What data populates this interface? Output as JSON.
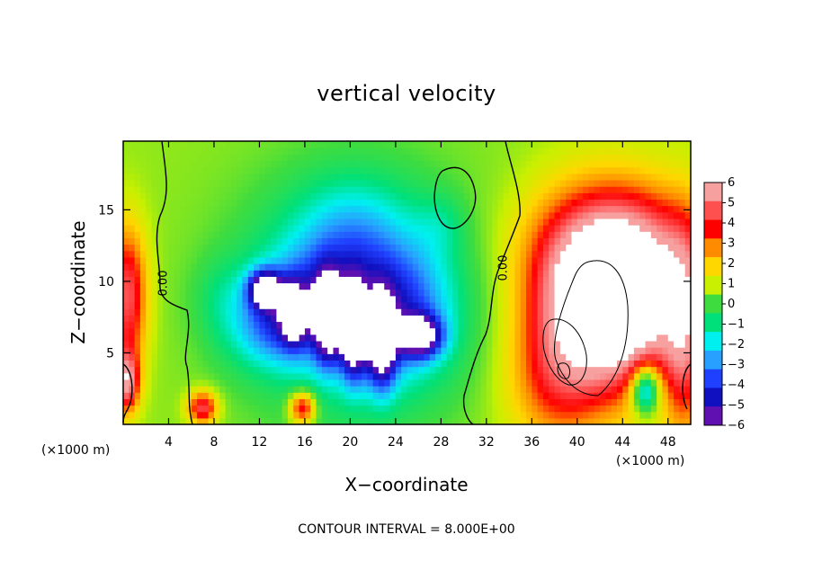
{
  "chart_data": {
    "type": "heatmap",
    "title": "vertical velocity",
    "xlabel": "X−coordinate",
    "ylabel": "Z−coordinate",
    "x_unit": "(×1000 m)",
    "z_unit": "(×1000 m)",
    "footnote": "CONTOUR INTERVAL = 8.000E+00",
    "xlim": [
      0,
      50
    ],
    "zlim": [
      0,
      19.8
    ],
    "x_ticks": [
      4,
      8,
      12,
      16,
      20,
      24,
      28,
      32,
      36,
      40,
      44,
      48
    ],
    "z_ticks": [
      5,
      10,
      15
    ],
    "colorbar": {
      "min": -6,
      "max": 6,
      "ticks": [
        "6",
        "5",
        "4",
        "3",
        "2",
        "1",
        "0",
        "−1",
        "−2",
        "−3",
        "−4",
        "−5",
        "−6"
      ],
      "colors": [
        "#f7a0a0",
        "#ff5050",
        "#ff0000",
        "#ff8c00",
        "#ffd700",
        "#c8f000",
        "#3fdc3f",
        "#00e07a",
        "#00f0f0",
        "#28a0ff",
        "#2040ff",
        "#1010c0",
        "#6010b0"
      ]
    },
    "contour_labels": [
      "0.00",
      "0.00"
    ],
    "features": [
      {
        "x": 20.5,
        "z": 9.0,
        "sx": 6.5,
        "sz": 5.5,
        "w": -3.6
      },
      {
        "x": 17.0,
        "z": 8.5,
        "sx": 3.0,
        "sz": 2.5,
        "w": -2.4
      },
      {
        "x": 24.5,
        "z": 8.0,
        "sx": 3.0,
        "sz": 3.0,
        "w": -2.4
      },
      {
        "x": 14.0,
        "z": 7.5,
        "sx": 2.0,
        "sz": 2.0,
        "w": -2.0
      },
      {
        "x": 11.5,
        "z": 6.5,
        "sx": 2.5,
        "sz": 2.0,
        "w": -1.2
      },
      {
        "x": 20.0,
        "z": 13.5,
        "sx": 3.0,
        "sz": 2.5,
        "w": -1.2
      },
      {
        "x": 9.0,
        "z": 9.0,
        "sx": 2.0,
        "sz": 2.0,
        "w": -0.9
      },
      {
        "x": 28.0,
        "z": 14.0,
        "sx": 1.5,
        "sz": 1.5,
        "w": -0.8
      },
      {
        "x": 12.5,
        "z": 9.5,
        "sx": 1.0,
        "sz": 0.9,
        "w": -6.0
      },
      {
        "x": 15.0,
        "z": 7.8,
        "sx": 0.7,
        "sz": 1.3,
        "w": -5.0
      },
      {
        "x": 18.0,
        "z": 7.5,
        "sx": 0.8,
        "sz": 2.0,
        "w": -6.0
      },
      {
        "x": 20.3,
        "z": 6.5,
        "sx": 0.8,
        "sz": 2.2,
        "w": -6.0
      },
      {
        "x": 22.8,
        "z": 5.8,
        "sx": 0.9,
        "sz": 2.2,
        "w": -6.0
      },
      {
        "x": 26.2,
        "z": 6.2,
        "sx": 1.3,
        "sz": 1.0,
        "w": -6.0
      },
      {
        "x": 43.0,
        "z": 8.5,
        "sx": 4.3,
        "sz": 4.2,
        "w": 9.0
      },
      {
        "x": 43.0,
        "z": 12.5,
        "sx": 6.0,
        "sz": 3.5,
        "w": 3.0
      },
      {
        "x": 38.0,
        "z": 3.0,
        "sx": 3.0,
        "sz": 3.5,
        "w": 2.5
      },
      {
        "x": 49.5,
        "z": 6.0,
        "sx": 1.3,
        "sz": 5.0,
        "w": 3.5
      },
      {
        "x": 0.4,
        "z": 9.0,
        "sx": 1.2,
        "sz": 3.5,
        "w": 4.5
      },
      {
        "x": 0.3,
        "z": 3.0,
        "sx": 0.8,
        "sz": 1.5,
        "w": 5.0
      },
      {
        "x": 7.0,
        "z": 1.2,
        "sx": 0.9,
        "sz": 0.8,
        "w": 4.5
      },
      {
        "x": 15.8,
        "z": 1.2,
        "sx": 0.8,
        "sz": 0.8,
        "w": 4.5
      },
      {
        "x": 46.0,
        "z": 2.5,
        "sx": 0.9,
        "sz": 1.2,
        "w": -5.0
      },
      {
        "x": 34.5,
        "z": 12.0,
        "sx": 3.0,
        "sz": 5.0,
        "w": -0.3
      }
    ]
  }
}
